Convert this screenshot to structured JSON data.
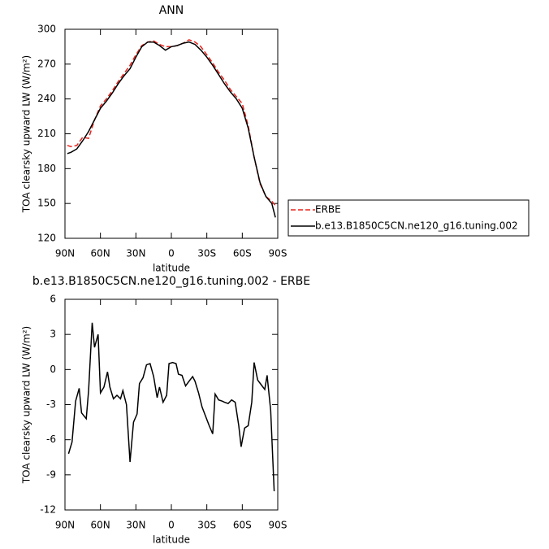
{
  "chart_data": [
    {
      "type": "line",
      "title": "ANN",
      "xlabel": "latitude",
      "ylabel": "TOA clearsky upward LW (W/m²)",
      "x": [
        88,
        85,
        80,
        75,
        70,
        65,
        60,
        55,
        50,
        45,
        40,
        35,
        30,
        25,
        20,
        15,
        10,
        5,
        0,
        -5,
        -10,
        -15,
        -20,
        -25,
        -30,
        -35,
        -40,
        -45,
        -50,
        -55,
        -60,
        -65,
        -70,
        -75,
        -80,
        -85,
        -88
      ],
      "series": [
        {
          "name": "ERBE",
          "color": "#e8241c",
          "dash": true,
          "values": [
            200,
            199,
            200,
            207,
            206,
            222,
            234,
            240,
            247,
            255,
            262,
            269,
            278,
            286,
            289,
            290,
            287,
            285,
            285,
            286,
            288,
            291,
            289,
            285,
            278,
            271,
            263,
            256,
            248,
            242,
            236,
            217,
            190,
            167,
            156,
            152,
            148
          ]
        },
        {
          "name": "b.e13.B1850C5CN.ne120_g16.tuning.002",
          "color": "#000000",
          "dash": false,
          "values": [
            193,
            194,
            197,
            204,
            212,
            222,
            232,
            238,
            245,
            253,
            260,
            266,
            276,
            285,
            289,
            289,
            286,
            282,
            285,
            286,
            288,
            289,
            287,
            282,
            276,
            269,
            261,
            253,
            246,
            240,
            232,
            215,
            190,
            168,
            156,
            150,
            138
          ]
        }
      ],
      "xlim": [
        90,
        -90
      ],
      "ylim": [
        120,
        300
      ],
      "xticks": [
        {
          "value": 90,
          "label": "90N"
        },
        {
          "value": 60,
          "label": "60N"
        },
        {
          "value": 30,
          "label": "30N"
        },
        0,
        {
          "value": -30,
          "label": "30S"
        },
        {
          "value": -60,
          "label": "60S"
        },
        {
          "value": -90,
          "label": "90S"
        }
      ],
      "yticks": [
        120,
        150,
        180,
        210,
        240,
        270,
        300
      ],
      "legend": "right"
    },
    {
      "type": "line",
      "title": "b.e13.B1850C5CN.ne120_g16.tuning.002 - ERBE",
      "xlabel": "latitude",
      "ylabel": "TOA clearsky upward LW (W/m²)",
      "x": [
        87,
        84,
        81,
        78,
        76,
        72,
        70,
        67,
        65,
        62,
        60,
        57,
        54,
        52,
        49,
        46,
        43,
        41,
        38,
        35,
        32,
        29,
        27,
        24,
        21,
        18,
        15,
        12,
        10,
        7,
        4,
        2,
        -1,
        -4,
        -6,
        -9,
        -12,
        -15,
        -18,
        -20,
        -23,
        -26,
        -29,
        -32,
        -35,
        -37,
        -40,
        -43,
        -45,
        -48,
        -51,
        -54,
        -57,
        -59,
        -62,
        -65,
        -68,
        -70,
        -73,
        -76,
        -79,
        -81,
        -84,
        -87
      ],
      "series": [
        {
          "color": "#000000",
          "dash": false,
          "values": [
            -7.2,
            -6.2,
            -2.7,
            -1.6,
            -3.7,
            -4.2,
            -1.8,
            4.0,
            1.9,
            3.0,
            -2.0,
            -1.5,
            -0.2,
            -1.5,
            -2.5,
            -2.2,
            -2.5,
            -1.8,
            -3.0,
            -7.9,
            -4.5,
            -3.8,
            -1.2,
            -0.7,
            0.4,
            0.5,
            -0.6,
            -2.4,
            -1.5,
            -2.8,
            -2.2,
            0.5,
            0.6,
            0.5,
            -0.4,
            -0.5,
            -1.4,
            -1.0,
            -0.6,
            -1.0,
            -2.0,
            -3.2,
            -4.0,
            -4.8,
            -5.5,
            -2.1,
            -2.6,
            -2.7,
            -2.8,
            -2.9,
            -2.6,
            -2.8,
            -4.8,
            -6.6,
            -5.0,
            -4.8,
            -2.8,
            0.6,
            -0.9,
            -1.3,
            -1.7,
            -0.5,
            -3.5,
            -10.4
          ]
        }
      ],
      "xlim": [
        90,
        -90
      ],
      "ylim": [
        -12,
        6
      ],
      "xticks": [
        {
          "value": 90,
          "label": "90N"
        },
        {
          "value": 60,
          "label": "60N"
        },
        {
          "value": 30,
          "label": "30N"
        },
        0,
        {
          "value": -30,
          "label": "30S"
        },
        {
          "value": -60,
          "label": "60S"
        },
        {
          "value": -90,
          "label": "90S"
        }
      ],
      "yticks": [
        -12,
        -9,
        -6,
        -3,
        0,
        3,
        6
      ]
    }
  ]
}
